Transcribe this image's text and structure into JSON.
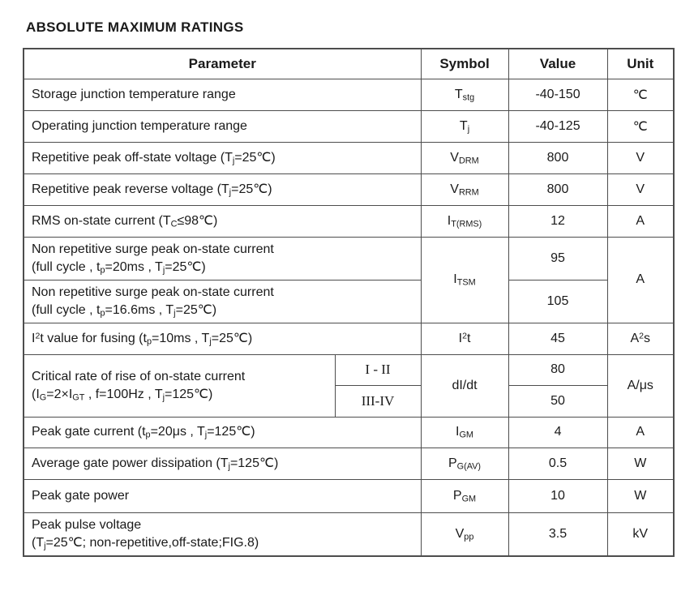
{
  "title": "ABSOLUTE MAXIMUM RATINGS",
  "table": {
    "headers": {
      "parameter": "Parameter",
      "symbol": "Symbol",
      "value": "Value",
      "unit": "Unit"
    },
    "rows": {
      "storage": {
        "param": [
          {
            "t": "Storage junction temperature range"
          }
        ],
        "symbol": [
          {
            "t": "T"
          },
          {
            "t": "stg",
            "style": "sub"
          }
        ],
        "value": "-40-150",
        "unit": [
          {
            "t": "℃"
          }
        ]
      },
      "operating": {
        "param": [
          {
            "t": "Operating junction temperature range"
          }
        ],
        "symbol": [
          {
            "t": "T"
          },
          {
            "t": "j",
            "style": "sub"
          }
        ],
        "value": "-40-125",
        "unit": [
          {
            "t": "℃"
          }
        ]
      },
      "vdrm": {
        "param": [
          {
            "t": "Repetitive peak off-state voltage (T"
          },
          {
            "t": "j",
            "style": "sub"
          },
          {
            "t": "=25℃)"
          }
        ],
        "symbol": [
          {
            "t": "V"
          },
          {
            "t": "DRM",
            "style": "sub"
          }
        ],
        "value": "800",
        "unit": [
          {
            "t": "V"
          }
        ]
      },
      "vrrm": {
        "param": [
          {
            "t": "Repetitive peak reverse voltage (T"
          },
          {
            "t": "j",
            "style": "sub"
          },
          {
            "t": "=25℃)"
          }
        ],
        "symbol": [
          {
            "t": "V"
          },
          {
            "t": "RRM",
            "style": "sub"
          }
        ],
        "value": "800",
        "unit": [
          {
            "t": "V"
          }
        ]
      },
      "itrms": {
        "param": [
          {
            "t": "RMS on-state current (T"
          },
          {
            "t": "C",
            "style": "sub"
          },
          {
            "t": "≤98℃)"
          }
        ],
        "symbol": [
          {
            "t": "I"
          },
          {
            "t": "T(RMS)",
            "style": "sub"
          }
        ],
        "value": "12",
        "unit": [
          {
            "t": "A"
          }
        ]
      },
      "itsm": {
        "param_20ms": [
          {
            "t": "Non repetitive surge peak on-state current"
          },
          {
            "style": "br"
          },
          {
            "t": "(full cycle , t"
          },
          {
            "t": "p",
            "style": "sub"
          },
          {
            "t": "=20ms , T"
          },
          {
            "t": "j",
            "style": "sub"
          },
          {
            "t": "=25℃)"
          }
        ],
        "param_16ms": [
          {
            "t": "Non repetitive surge peak on-state current"
          },
          {
            "style": "br"
          },
          {
            "t": "(full cycle , t"
          },
          {
            "t": "p",
            "style": "sub"
          },
          {
            "t": "=16.6ms , T"
          },
          {
            "t": "j",
            "style": "sub"
          },
          {
            "t": "=25℃)"
          }
        ],
        "symbol": [
          {
            "t": "I"
          },
          {
            "t": "TSM",
            "style": "sub"
          }
        ],
        "value_20ms": "95",
        "value_16ms": "105",
        "unit": [
          {
            "t": "A"
          }
        ]
      },
      "i2t": {
        "param": [
          {
            "t": "I"
          },
          {
            "t": "2",
            "style": "sup"
          },
          {
            "t": "t value for fusing (t"
          },
          {
            "t": "p",
            "style": "sub"
          },
          {
            "t": "=10ms , T"
          },
          {
            "t": "j",
            "style": "sub"
          },
          {
            "t": "=25℃)"
          }
        ],
        "symbol": [
          {
            "t": "I"
          },
          {
            "t": "2",
            "style": "sup"
          },
          {
            "t": "t"
          }
        ],
        "value": "45",
        "unit": [
          {
            "t": "A"
          },
          {
            "t": "2",
            "style": "sup"
          },
          {
            "t": "s"
          }
        ]
      },
      "didt": {
        "param": [
          {
            "t": "Critical rate of rise of on-state current"
          },
          {
            "style": "br"
          },
          {
            "t": "(I"
          },
          {
            "t": "G",
            "style": "sub"
          },
          {
            "t": "=2×I"
          },
          {
            "t": "GT",
            "style": "sub"
          },
          {
            "t": " , f=100Hz , T"
          },
          {
            "t": "j",
            "style": "sub"
          },
          {
            "t": "=125℃)"
          }
        ],
        "class_1": [
          {
            "t": "I - II",
            "style": "serif"
          }
        ],
        "class_2": [
          {
            "t": "III-IV",
            "style": "serif"
          }
        ],
        "symbol": [
          {
            "t": "dI/dt"
          }
        ],
        "value_1": "80",
        "value_2": "50",
        "unit": [
          {
            "t": "A/μs"
          }
        ]
      },
      "igm": {
        "param": [
          {
            "t": "Peak gate current (t"
          },
          {
            "t": "p",
            "style": "sub"
          },
          {
            "t": "=20μs , T"
          },
          {
            "t": "j",
            "style": "sub"
          },
          {
            "t": "=125℃)"
          }
        ],
        "symbol": [
          {
            "t": "I"
          },
          {
            "t": "GM",
            "style": "sub"
          }
        ],
        "value": "4",
        "unit": [
          {
            "t": "A"
          }
        ]
      },
      "pgav": {
        "param": [
          {
            "t": "Average gate power dissipation (T"
          },
          {
            "t": "j",
            "style": "sub"
          },
          {
            "t": "=125℃)"
          }
        ],
        "symbol": [
          {
            "t": "P"
          },
          {
            "t": "G(AV)",
            "style": "sub"
          }
        ],
        "value": "0.5",
        "unit": [
          {
            "t": "W"
          }
        ]
      },
      "pgm": {
        "param": [
          {
            "t": "Peak gate power"
          }
        ],
        "symbol": [
          {
            "t": "P"
          },
          {
            "t": "GM",
            "style": "sub"
          }
        ],
        "value": "10",
        "unit": [
          {
            "t": "W"
          }
        ]
      },
      "vpp": {
        "param": [
          {
            "t": "Peak pulse voltage"
          },
          {
            "style": "br"
          },
          {
            "t": "(T"
          },
          {
            "t": "j",
            "style": "sub"
          },
          {
            "t": "=25℃; non-repetitive,off-state;FIG.8)"
          }
        ],
        "symbol": [
          {
            "t": "V"
          },
          {
            "t": "pp",
            "style": "sub"
          }
        ],
        "value": "3.5",
        "unit": [
          {
            "t": "kV"
          }
        ]
      }
    }
  }
}
